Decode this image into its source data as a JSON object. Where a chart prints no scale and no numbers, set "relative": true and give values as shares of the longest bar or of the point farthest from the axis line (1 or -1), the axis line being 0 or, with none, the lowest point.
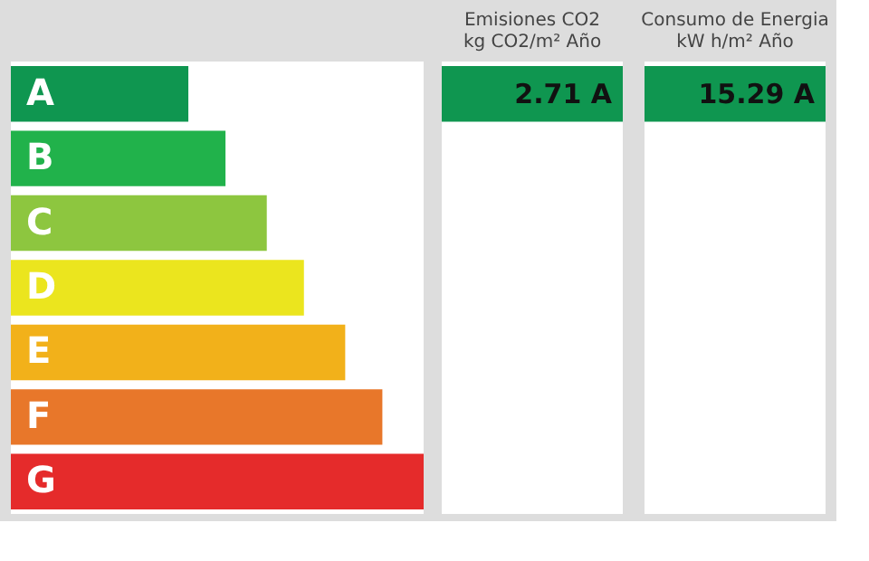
{
  "chart_data": {
    "type": "bar",
    "orientation": "horizontal",
    "relative": true,
    "categories": [
      "A",
      "B",
      "C",
      "D",
      "E",
      "F",
      "G"
    ],
    "values": [
      0.43,
      0.52,
      0.62,
      0.71,
      0.81,
      0.9,
      1
    ],
    "colors": [
      "#0f9650",
      "#21b24b",
      "#8dc63f",
      "#ebe51e",
      "#f2b11a",
      "#e8772a",
      "#e52b2b"
    ],
    "annotations": [
      "Emisiones CO2\nkg CO2/m² Año",
      "Consumo de Energia\nkW h/m² Año",
      "2.71 A",
      "15.29 A"
    ]
  }
}
